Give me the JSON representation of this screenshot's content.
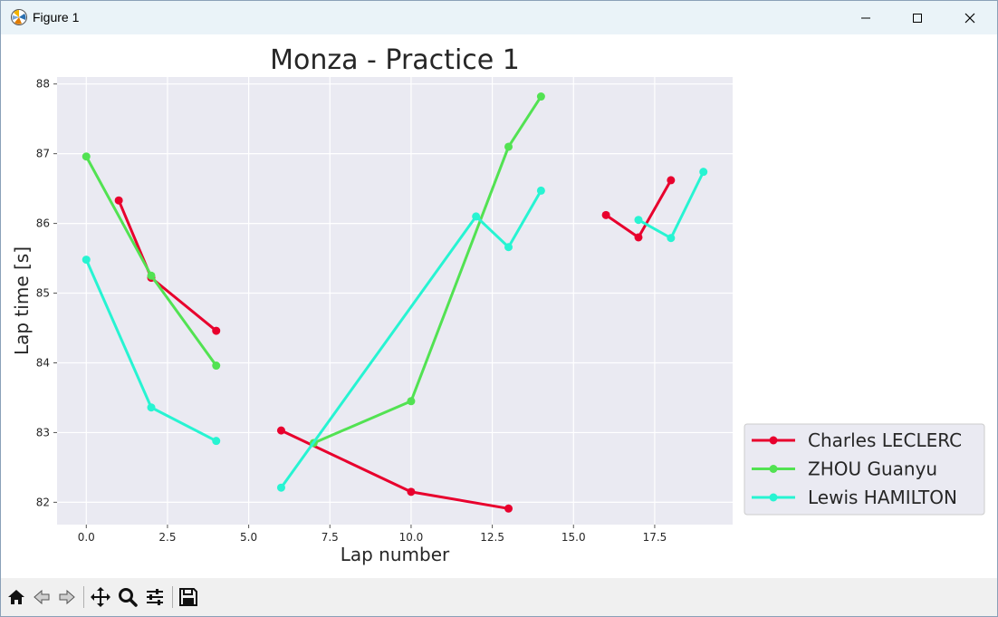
{
  "window": {
    "title": "Figure 1",
    "controls": {
      "minimize": "minimize-icon",
      "maximize": "maximize-icon",
      "close": "close-icon"
    }
  },
  "toolbar": {
    "tools": [
      "home-icon",
      "back-arrow-icon",
      "forward-arrow-icon",
      "pan-icon",
      "zoom-icon",
      "configure-subplots-icon",
      "save-icon"
    ]
  },
  "chart_data": {
    "type": "line",
    "title": "Monza - Practice 1",
    "xlabel": "Lap number",
    "ylabel": "Lap time [s]",
    "xlim": [
      -0.9,
      19.9
    ],
    "ylim": [
      81.68,
      88.1
    ],
    "xticks": [
      "0.0",
      "2.5",
      "5.0",
      "7.5",
      "10.0",
      "12.5",
      "15.0",
      "17.5"
    ],
    "yticks": [
      "82",
      "83",
      "84",
      "85",
      "86",
      "87",
      "88"
    ],
    "grid": true,
    "legend_position": "lower-right-outside",
    "series": [
      {
        "name": "Charles LECLERC",
        "color": "#e8002d",
        "segments": [
          [
            [
              1,
              86.33
            ],
            [
              2,
              85.22
            ],
            [
              4,
              84.46
            ]
          ],
          [
            [
              6,
              83.03
            ],
            [
              10,
              82.15
            ],
            [
              13,
              81.91
            ]
          ],
          [
            [
              16,
              86.12
            ],
            [
              17,
              85.8
            ],
            [
              18,
              86.62
            ]
          ]
        ]
      },
      {
        "name": "ZHOU Guanyu",
        "color": "#52e252",
        "segments": [
          [
            [
              0,
              86.96
            ],
            [
              2,
              85.25
            ],
            [
              4,
              83.96
            ]
          ],
          [
            [
              7,
              82.85
            ],
            [
              10,
              83.45
            ],
            [
              13,
              87.1
            ],
            [
              14,
              87.82
            ]
          ]
        ]
      },
      {
        "name": "Lewis HAMILTON",
        "color": "#27f4d2",
        "segments": [
          [
            [
              0,
              85.48
            ],
            [
              2,
              83.36
            ],
            [
              4,
              82.88
            ]
          ],
          [
            [
              6,
              82.21
            ],
            [
              12,
              86.1
            ],
            [
              13,
              85.66
            ],
            [
              14,
              86.47
            ]
          ],
          [
            [
              17,
              86.05
            ],
            [
              18,
              85.79
            ],
            [
              19,
              86.74
            ]
          ]
        ]
      }
    ]
  }
}
